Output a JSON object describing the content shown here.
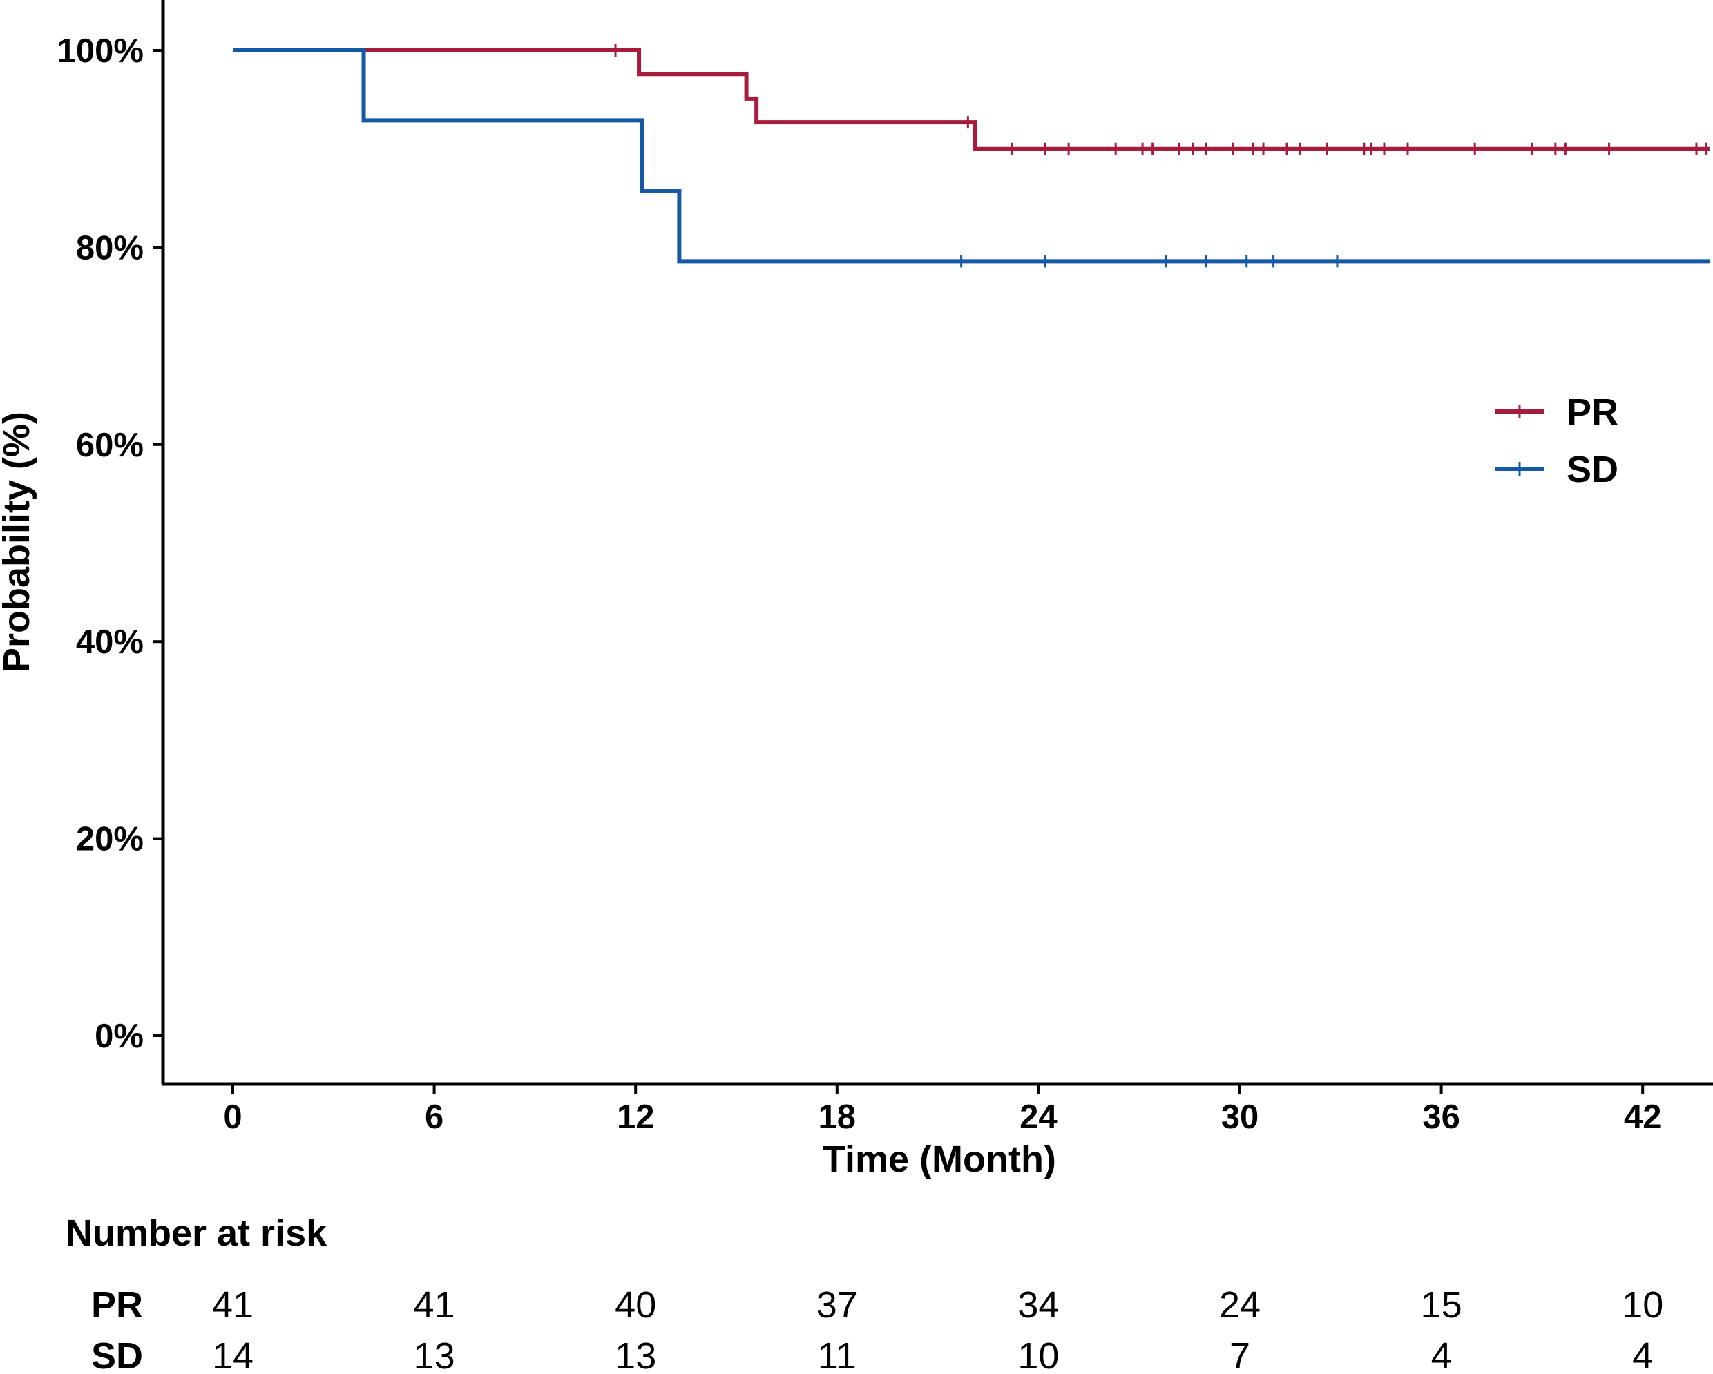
{
  "chart_data": {
    "type": "line",
    "subtype": "kaplan-meier",
    "xlabel": "Time (Month)",
    "ylabel": "Probability (%)",
    "xlim": [
      -2,
      44
    ],
    "ylim": [
      -5,
      105
    ],
    "x_ticks": [
      0,
      6,
      12,
      18,
      24,
      30,
      36,
      42
    ],
    "x_tick_labels": [
      "0",
      "6",
      "12",
      "18",
      "24",
      "30",
      "36",
      "42"
    ],
    "y_ticks": [
      0,
      20,
      40,
      60,
      80,
      100
    ],
    "y_tick_labels": [
      "0%",
      "20%",
      "40%",
      "60%",
      "80%",
      "100%"
    ],
    "legend_position": "right",
    "series": [
      {
        "name": "PR",
        "color": "#A51C3C",
        "steps": [
          [
            0,
            100
          ],
          [
            12.1,
            97.6
          ],
          [
            15.3,
            95.1
          ],
          [
            15.6,
            92.7
          ],
          [
            22.1,
            90.0
          ],
          [
            44,
            90.0
          ]
        ],
        "censored": [
          [
            11.4,
            100
          ],
          [
            21.9,
            92.7
          ],
          [
            23.2,
            90
          ],
          [
            24.2,
            90
          ],
          [
            24.9,
            90
          ],
          [
            26.3,
            90
          ],
          [
            27.1,
            90
          ],
          [
            27.4,
            90
          ],
          [
            28.2,
            90
          ],
          [
            28.6,
            90
          ],
          [
            29.0,
            90
          ],
          [
            29.8,
            90
          ],
          [
            30.4,
            90
          ],
          [
            30.7,
            90
          ],
          [
            31.4,
            90
          ],
          [
            31.8,
            90
          ],
          [
            32.6,
            90
          ],
          [
            33.7,
            90
          ],
          [
            33.9,
            90
          ],
          [
            34.3,
            90
          ],
          [
            35.0,
            90
          ],
          [
            37.0,
            90
          ],
          [
            38.7,
            90
          ],
          [
            39.4,
            90
          ],
          [
            39.7,
            90
          ],
          [
            41.0,
            90
          ],
          [
            43.6,
            90
          ],
          [
            43.9,
            90
          ]
        ]
      },
      {
        "name": "SD",
        "color": "#1459A3",
        "steps": [
          [
            0,
            100
          ],
          [
            3.9,
            92.9
          ],
          [
            12.2,
            85.7
          ],
          [
            13.3,
            78.6
          ],
          [
            44,
            78.6
          ]
        ],
        "censored": [
          [
            21.7,
            78.6
          ],
          [
            24.2,
            78.6
          ],
          [
            27.8,
            78.6
          ],
          [
            29.0,
            78.6
          ],
          [
            30.2,
            78.6
          ],
          [
            31.0,
            78.6
          ],
          [
            32.9,
            78.6
          ]
        ]
      }
    ],
    "risk_table": {
      "title": "Number at risk",
      "rows": [
        {
          "name": "PR",
          "values": [
            "41",
            "41",
            "40",
            "37",
            "34",
            "24",
            "15",
            "10"
          ]
        },
        {
          "name": "SD",
          "values": [
            "14",
            "13",
            "13",
            "11",
            "10",
            "7",
            "4",
            "4"
          ]
        }
      ]
    }
  }
}
